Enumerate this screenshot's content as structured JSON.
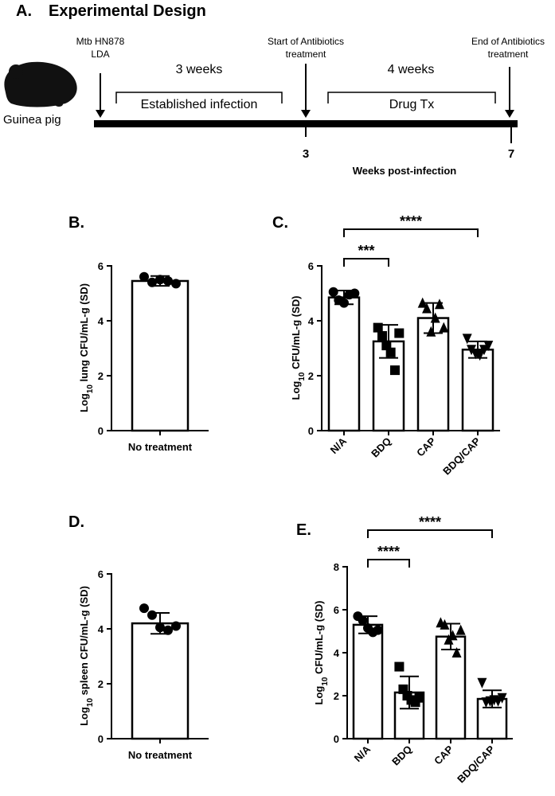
{
  "panel_a": {
    "letter": "A.",
    "title": "Experimental Design",
    "animal_label": "Guinea pig",
    "arrow1_line1": "Mtb HN878",
    "arrow1_line2": "LDA",
    "period1_weeks": "3 weeks",
    "period1_label": "Established infection",
    "arrow2_line1": "Start of Antibiotics",
    "arrow2_line2": "treatment",
    "period2_weeks": "4 weeks",
    "period2_label": "Drug Tx",
    "arrow3_line1": "End of Antibiotics",
    "arrow3_line2": "treatment",
    "tick3": "3",
    "tick7": "7",
    "axis_label": "Weeks post-infection"
  },
  "chart_data": [
    {
      "panel": "B.",
      "type": "bar",
      "ylabel_parts": [
        "Log",
        "10",
        " lung CFU/mL-g (SD)"
      ],
      "ylim": [
        0,
        6
      ],
      "yticks": [
        0,
        2,
        4,
        6
      ],
      "categories": [
        "No treatment"
      ],
      "values": [
        5.45
      ],
      "sd": [
        0.18
      ],
      "points": [
        [
          5.6,
          5.4,
          5.5,
          5.45,
          5.35
        ]
      ],
      "markers": [
        "circle"
      ],
      "significance": []
    },
    {
      "panel": "C.",
      "type": "bar",
      "ylabel_parts": [
        "Log",
        "10",
        " CFU/mL-g (SD)"
      ],
      "ylim": [
        0,
        6
      ],
      "yticks": [
        0,
        2,
        4,
        6
      ],
      "categories": [
        "N/A",
        "BDQ",
        "CAP",
        "BDQ/CAP"
      ],
      "values": [
        4.85,
        3.25,
        4.1,
        2.95
      ],
      "sd": [
        0.25,
        0.6,
        0.55,
        0.3
      ],
      "points": [
        [
          5.05,
          4.75,
          4.65,
          4.95,
          5.0
        ],
        [
          3.75,
          3.45,
          3.1,
          2.85,
          2.2,
          3.55
        ],
        [
          4.65,
          4.45,
          3.6,
          4.1,
          4.6,
          3.75
        ],
        [
          3.35,
          2.95,
          2.8,
          2.75,
          2.95,
          3.1
        ]
      ],
      "markers": [
        "circle",
        "square",
        "triangle",
        "triangle-down"
      ],
      "significance": [
        {
          "from": 0,
          "to": 1,
          "label": "***"
        },
        {
          "from": 0,
          "to": 3,
          "label": "****"
        }
      ]
    },
    {
      "panel": "D.",
      "type": "bar",
      "ylabel_parts": [
        "Log",
        "10",
        " spleen CFU/mL-g (SD)"
      ],
      "ylim": [
        0,
        6
      ],
      "yticks": [
        0,
        2,
        4,
        6
      ],
      "categories": [
        "No treatment"
      ],
      "values": [
        4.2
      ],
      "sd": [
        0.38
      ],
      "points": [
        [
          4.75,
          4.5,
          4.05,
          3.95,
          4.1
        ]
      ],
      "markers": [
        "circle"
      ],
      "significance": []
    },
    {
      "panel": "E.",
      "type": "bar",
      "ylabel_parts": [
        "Log",
        "10",
        " CFU/mL-g (SD)"
      ],
      "ylim": [
        0,
        8
      ],
      "yticks": [
        0,
        2,
        4,
        6,
        8
      ],
      "categories": [
        "N/A",
        "BDQ",
        "CAP",
        "BDQ/CAP"
      ],
      "values": [
        5.3,
        2.15,
        4.75,
        1.85
      ],
      "sd": [
        0.4,
        0.75,
        0.6,
        0.4
      ],
      "points": [
        [
          5.7,
          5.5,
          5.15,
          4.95,
          5.05
        ],
        [
          3.35,
          2.3,
          2.0,
          1.8,
          1.7,
          1.9
        ],
        [
          5.4,
          5.3,
          4.6,
          4.8,
          4.0,
          5.05
        ],
        [
          2.6,
          1.7,
          1.75,
          1.8,
          1.75,
          1.9
        ]
      ],
      "markers": [
        "circle",
        "square",
        "triangle",
        "triangle-down"
      ],
      "significance": [
        {
          "from": 0,
          "to": 1,
          "label": "****"
        },
        {
          "from": 0,
          "to": 3,
          "label": "****"
        }
      ]
    }
  ]
}
